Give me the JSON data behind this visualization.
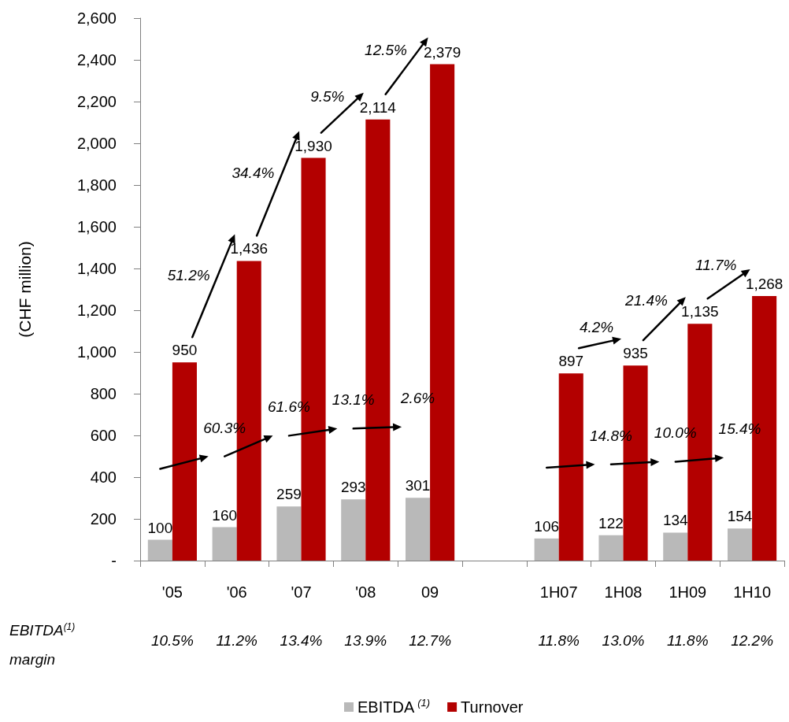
{
  "chart_data": {
    "type": "bar",
    "categories": [
      "'05",
      "'06",
      "'07",
      "'08",
      "09",
      null,
      "1H07",
      "1H08",
      "1H09",
      "1H10"
    ],
    "series": [
      {
        "name": "EBITDA$^{(1)}$",
        "color": "#b9b9b9",
        "values": [
          100,
          160,
          259,
          293,
          301,
          null,
          106,
          122,
          134,
          154
        ],
        "value_labels": [
          "100",
          "160",
          "259",
          "293",
          "301",
          null,
          "106",
          "122",
          "134",
          "154"
        ]
      },
      {
        "name": "Turnover",
        "color": "#b30000",
        "values": [
          950,
          1436,
          1930,
          2114,
          2379,
          null,
          897,
          935,
          1135,
          1268
        ],
        "value_labels": [
          "950",
          "1,436",
          "1,930",
          "2,114",
          "2,379",
          null,
          "897",
          "935",
          "1,135",
          "1,268"
        ]
      }
    ],
    "ylabel": "(CHF million)",
    "ylim": [
      0,
      2600
    ],
    "yticks": [
      {
        "value": 0,
        "label": "-"
      },
      200,
      400,
      600,
      800,
      {
        "value": 1000,
        "label": "1,000"
      },
      {
        "value": 1200,
        "label": "1,200"
      },
      {
        "value": 1400,
        "label": "1,400"
      },
      {
        "value": 1600,
        "label": "1,600"
      },
      {
        "value": 1800,
        "label": "1,800"
      },
      {
        "value": 2000,
        "label": "2,000"
      },
      {
        "value": 2200,
        "label": "2,200"
      },
      {
        "value": 2400,
        "label": "2,400"
      },
      {
        "value": 2600,
        "label": "2,600"
      }
    ],
    "grid": false,
    "legend": "bottom",
    "annotations": [
      {
        "text": "51.2%",
        "x": "'06",
        "y": 1436
      },
      {
        "text": "34.4%",
        "x": "'07",
        "y": 1930
      },
      {
        "text": "9.5%",
        "x": "'08",
        "y": 2114
      },
      {
        "text": "12.5%",
        "x": "09",
        "y": 2379
      },
      {
        "text": "4.2%",
        "x": "1H08",
        "y": 935
      },
      {
        "text": "21.4%",
        "x": "1H09",
        "y": 1135
      },
      {
        "text": "11.7%",
        "x": "1H10",
        "y": 1268
      },
      "EBITDA$^{(1)}$ margin",
      "10.5%",
      "11.2%",
      "13.4%",
      "13.9%",
      "12.7%",
      "11.8%",
      "13.0%",
      "11.8%",
      "12.2%",
      "60.3%",
      "61.6%",
      "13.1%",
      "2.6%",
      "14.8%",
      "10.0%",
      "15.4%"
    ]
  }
}
